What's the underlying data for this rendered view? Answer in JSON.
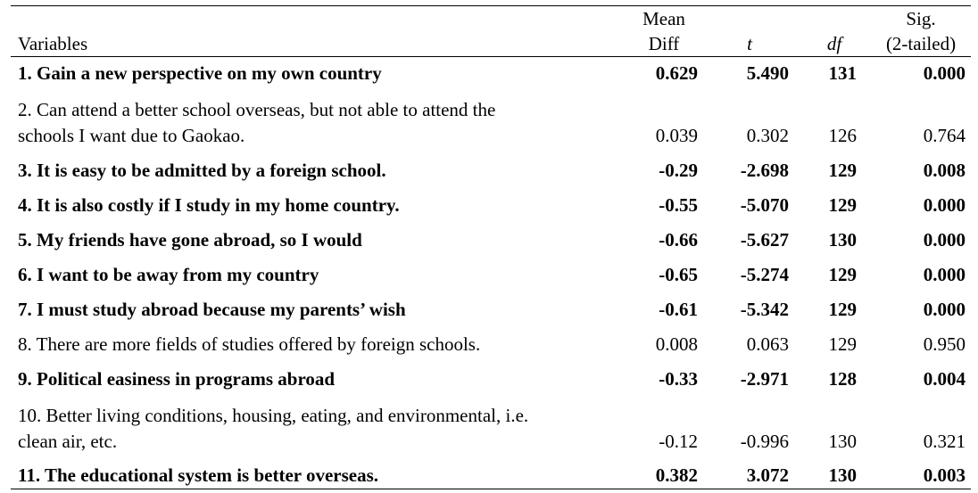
{
  "table": {
    "headers": {
      "variables": "Variables",
      "mean_diff_line1": "Mean",
      "mean_diff_line2": "Diff",
      "t": "t",
      "df": "df",
      "sig_line1": "Sig.",
      "sig_line2": "(2-tailed)"
    },
    "rows": [
      {
        "variable": "1. Gain a new perspective on my own country",
        "variable_line2": "",
        "mean_diff": "0.629",
        "t": "5.490",
        "df": "131",
        "sig": "0.000",
        "bold": true
      },
      {
        "variable": "2. Can attend a better school overseas, but not able to attend the",
        "variable_line2": "schools I want due to Gaokao.",
        "mean_diff": "0.039",
        "t": "0.302",
        "df": "126",
        "sig": "0.764",
        "bold": false
      },
      {
        "variable": "3. It is easy to be admitted by a foreign school.",
        "variable_line2": "",
        "mean_diff": "-0.29",
        "t": "-2.698",
        "df": "129",
        "sig": "0.008",
        "bold": true
      },
      {
        "variable": "4. It is also costly if I study in my home country.",
        "variable_line2": "",
        "mean_diff": "-0.55",
        "t": "-5.070",
        "df": "129",
        "sig": "0.000",
        "bold": true
      },
      {
        "variable": "5. My friends have gone abroad, so I would",
        "variable_line2": "",
        "mean_diff": "-0.66",
        "t": "-5.627",
        "df": "130",
        "sig": "0.000",
        "bold": true
      },
      {
        "variable": "6. I want to be away from my country",
        "variable_line2": "",
        "mean_diff": "-0.65",
        "t": "-5.274",
        "df": "129",
        "sig": "0.000",
        "bold": true
      },
      {
        "variable": "7. I must study abroad because my parents’ wish",
        "variable_line2": "",
        "mean_diff": "-0.61",
        "t": "-5.342",
        "df": "129",
        "sig": "0.000",
        "bold": true
      },
      {
        "variable": "8. There are more fields of studies offered by foreign schools.",
        "variable_line2": "",
        "mean_diff": "0.008",
        "t": "0.063",
        "df": "129",
        "sig": "0.950",
        "bold": false
      },
      {
        "variable": "9. Political easiness in programs abroad",
        "variable_line2": "",
        "mean_diff": "-0.33",
        "t": "-2.971",
        "df": "128",
        "sig": "0.004",
        "bold": true
      },
      {
        "variable": "10. Better living conditions, housing, eating, and environmental, i.e.",
        "variable_line2": "clean air, etc.",
        "mean_diff": "-0.12",
        "t": "-0.996",
        "df": "130",
        "sig": "0.321",
        "bold": false
      },
      {
        "variable": "11. The educational system is better overseas.",
        "variable_line2": "",
        "mean_diff": "0.382",
        "t": "3.072",
        "df": "130",
        "sig": "0.003",
        "bold": true
      }
    ]
  }
}
